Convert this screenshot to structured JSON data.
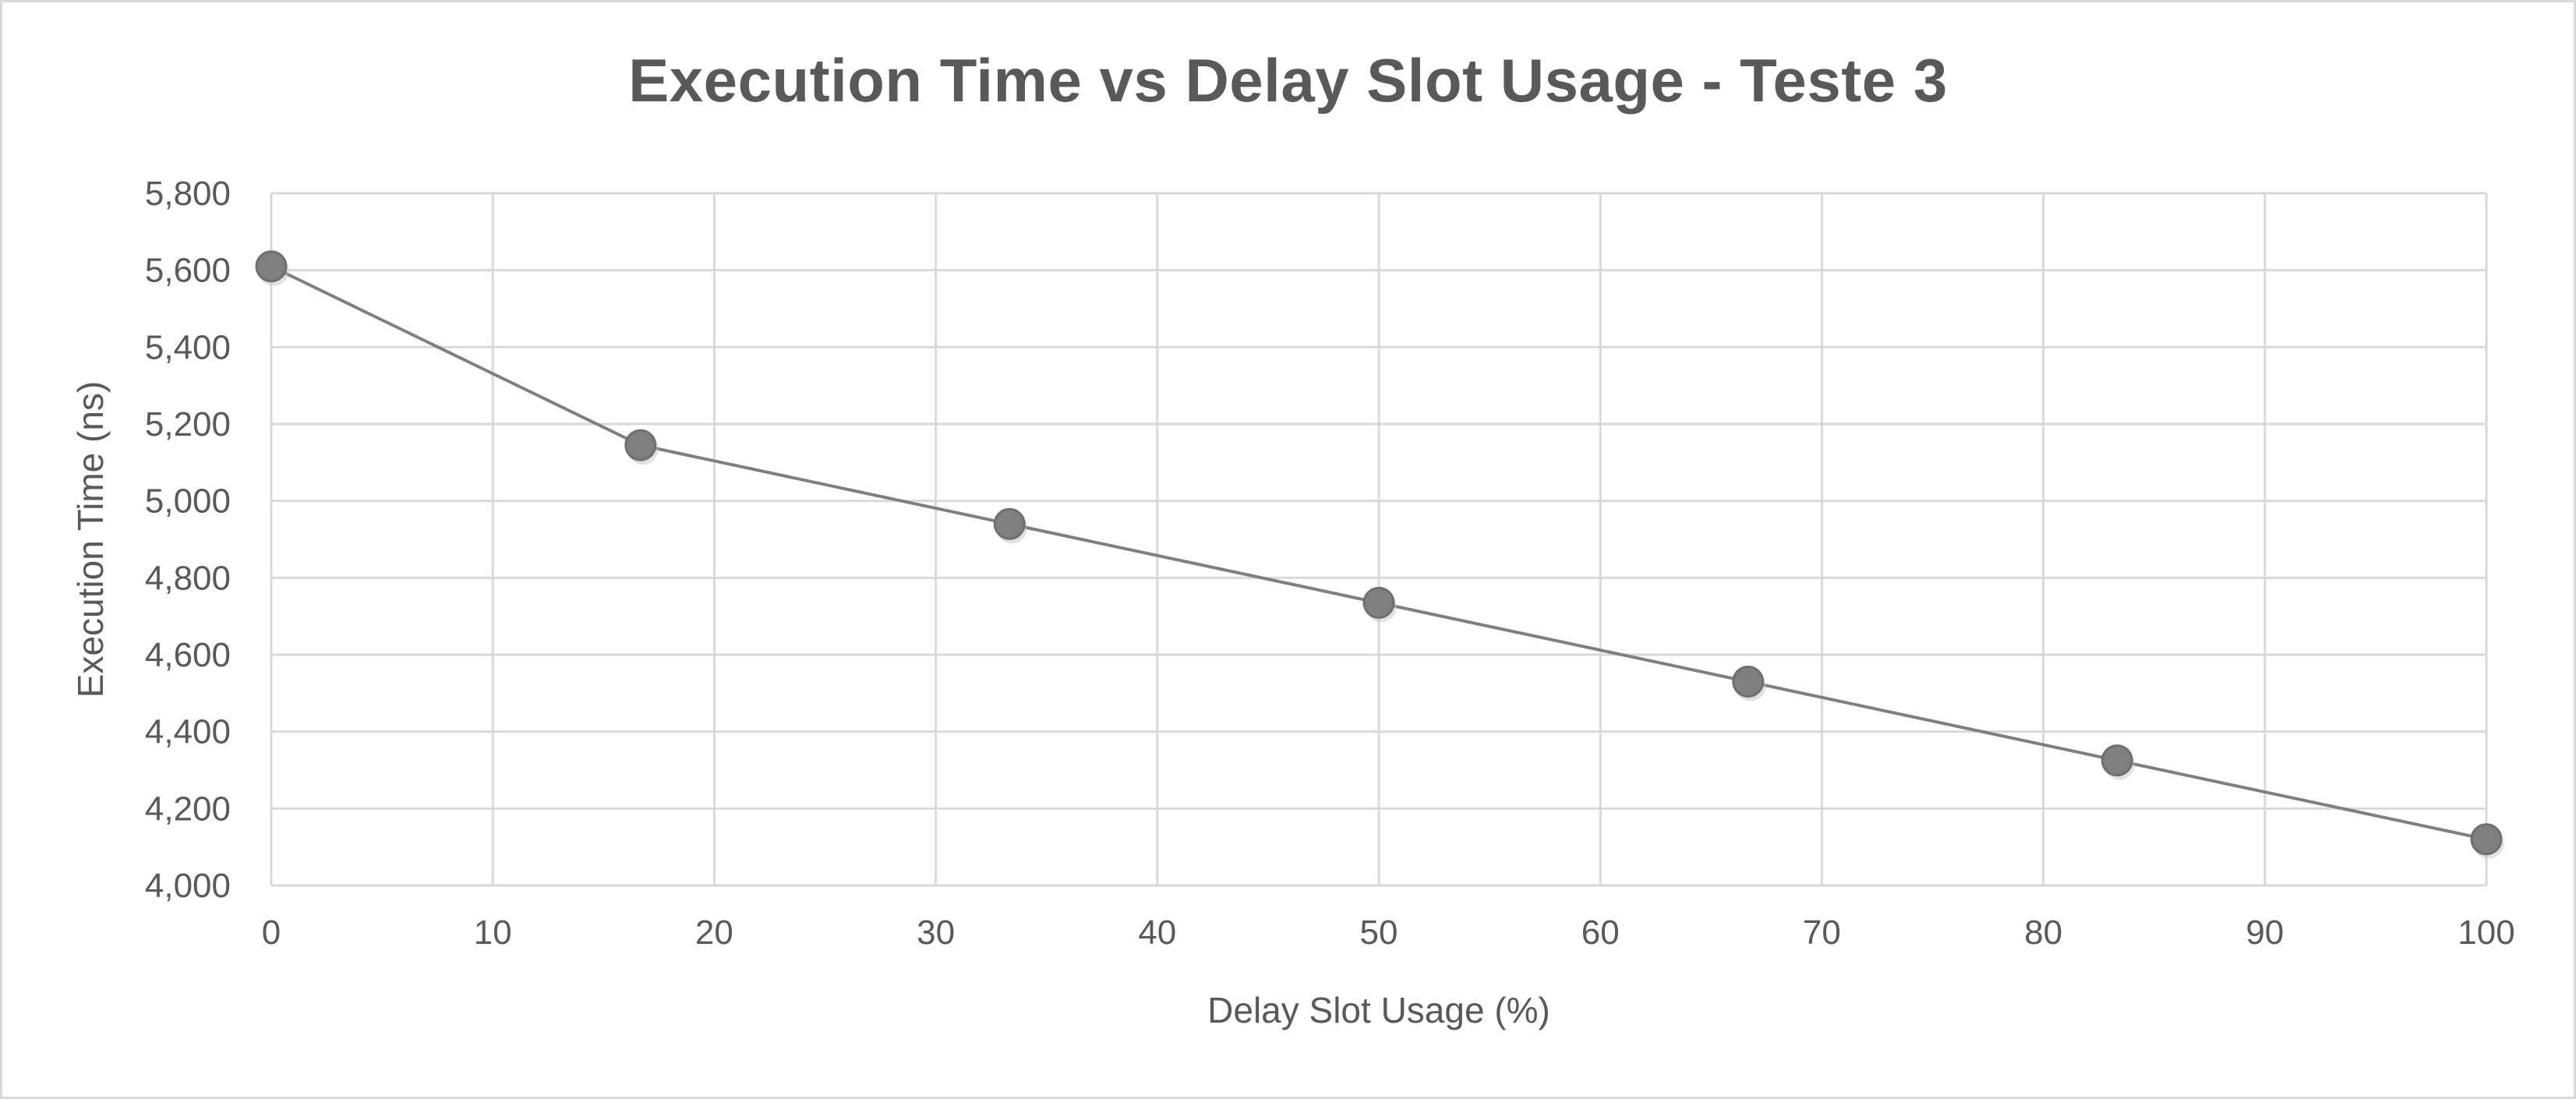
{
  "chart_data": {
    "type": "scatter",
    "title": "Execution Time vs Delay Slot Usage - Teste 3",
    "xlabel": "Delay Slot Usage (%)",
    "ylabel": "Execution Time (ns)",
    "xlim": [
      0,
      100
    ],
    "ylim": [
      4000,
      5800
    ],
    "x_ticks": [
      0,
      10,
      20,
      30,
      40,
      50,
      60,
      70,
      80,
      90,
      100
    ],
    "y_ticks": [
      4000,
      4200,
      4400,
      4600,
      4800,
      5000,
      5200,
      5400,
      5600,
      5800
    ],
    "x_tick_labels": [
      "0",
      "10",
      "20",
      "30",
      "40",
      "50",
      "60",
      "70",
      "80",
      "90",
      "100"
    ],
    "y_tick_labels": [
      "4,000",
      "4,200",
      "4,400",
      "4,600",
      "4,800",
      "5,000",
      "5,200",
      "5,400",
      "5,600",
      "5,800"
    ],
    "grid": true,
    "series": [
      {
        "x": [
          0,
          16.67,
          33.33,
          50,
          66.67,
          83.33,
          100
        ],
        "y": [
          5610,
          5145,
          4940,
          4735,
          4530,
          4325,
          4120
        ],
        "color": "#7f7f7f",
        "line": true
      }
    ]
  }
}
